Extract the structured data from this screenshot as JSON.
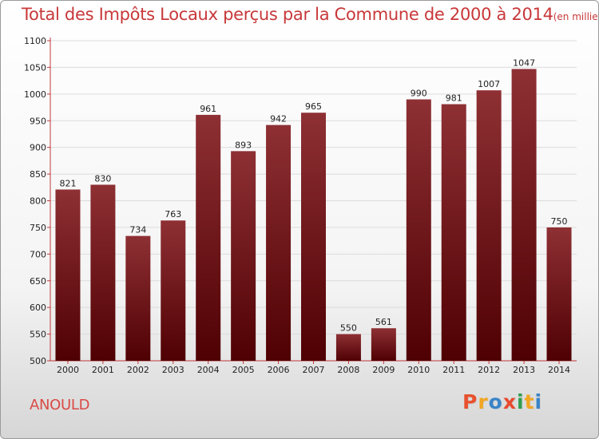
{
  "header": {
    "title": "Total des Impôts Locaux perçus par la Commune de 2000 à 2014",
    "subtitle": "(en milliers d'€)"
  },
  "commune": "ANOULD",
  "brand": {
    "text": "Proxiti",
    "letter_colors": [
      "#e8522f",
      "#f2a623",
      "#3a84c7",
      "#e84a2e",
      "#2f9e4f",
      "#f2a623",
      "#3a84c7"
    ]
  },
  "colors": {
    "bar_top": "#8e3034",
    "bar_bottom": "#4f0003",
    "title": "#c8383a",
    "axis": "#c0393b"
  },
  "chart_data": {
    "type": "bar",
    "categories": [
      "2000",
      "2001",
      "2002",
      "2003",
      "2004",
      "2005",
      "2006",
      "2007",
      "2008",
      "2009",
      "2010",
      "2011",
      "2012",
      "2013",
      "2014"
    ],
    "values": [
      821,
      830,
      734,
      763,
      961,
      893,
      942,
      965,
      550,
      561,
      990,
      981,
      1007,
      1047,
      750
    ],
    "title": "Total des Impôts Locaux perçus par la Commune de 2000 à 2014",
    "xlabel": "",
    "ylabel": "",
    "ylim": [
      500,
      1100
    ],
    "yticks": [
      500,
      550,
      600,
      650,
      700,
      750,
      800,
      850,
      900,
      950,
      1000,
      1050,
      1100
    ],
    "grid": true,
    "legend": "none"
  }
}
